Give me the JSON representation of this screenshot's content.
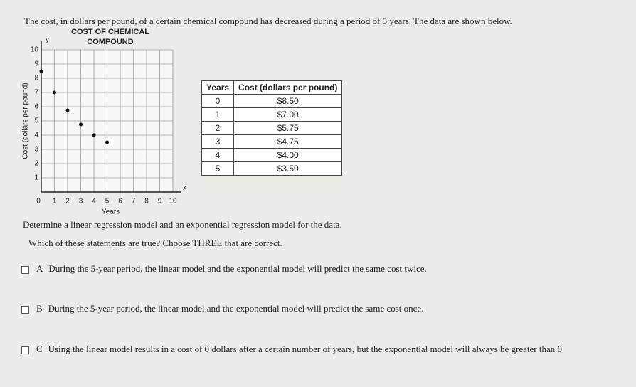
{
  "intro": "The cost, in dollars per pound, of a certain chemical compound has decreased during a period of 5 years. The data are shown below.",
  "chart_data": {
    "type": "scatter",
    "title": "COST OF CHEMICAL COMPOUND",
    "x_label": "Years",
    "y_label": "Cost (dollars per pound)",
    "x_axis_symbol": "x",
    "y_axis_symbol": "y",
    "x": [
      0,
      1,
      2,
      3,
      4,
      5
    ],
    "values": [
      8.5,
      7,
      5.75,
      4.75,
      4,
      3.5
    ],
    "color": "#111111",
    "xlim": [
      0,
      10
    ],
    "ylim": [
      0,
      10
    ],
    "xticks": [
      0,
      1,
      2,
      3,
      4,
      5,
      6,
      7,
      8,
      9,
      10
    ],
    "yticks": [
      0,
      1,
      2,
      3,
      4,
      5,
      6,
      7,
      8,
      9,
      10
    ],
    "grid": true
  },
  "table": {
    "header": [
      "Years",
      "Cost (dollars per pound)"
    ],
    "rows": [
      [
        "0",
        "$8.50"
      ],
      [
        "1",
        "$7.00"
      ],
      [
        "2",
        "$5.75"
      ],
      [
        "3",
        "$4.75"
      ],
      [
        "4",
        "$4.00"
      ],
      [
        "5",
        "$3.50"
      ]
    ]
  },
  "instruction": "Determine a linear regression model and an exponential regression model for the data.",
  "question": "Which of these statements are true? Choose THREE that are correct.",
  "options": [
    {
      "letter": "A",
      "text": "During the 5-year period, the linear model and the exponential model will predict the same cost twice."
    },
    {
      "letter": "B",
      "text": "During the 5-year period, the linear model and the exponential model will predict the same cost once."
    },
    {
      "letter": "C",
      "text": "Using the linear model results in a cost of 0 dollars after a certain number of years, but the exponential model will always be greater than 0"
    }
  ]
}
